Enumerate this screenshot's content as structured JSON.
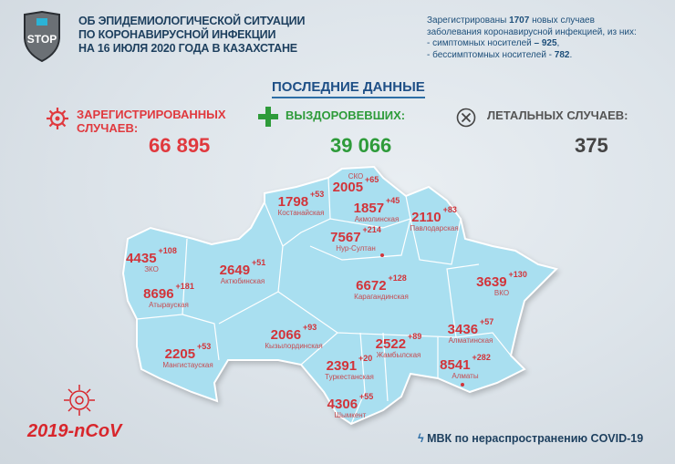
{
  "header": {
    "title_lines": [
      "ОБ ЭПИДЕМИОЛОГИЧЕСКОЙ СИТУАЦИИ",
      "ПО КОРОНАВИРУСНОЙ ИНФЕКЦИИ",
      "НА 16 ИЮЛЯ 2020 ГОДА В КАЗАХСТАНЕ"
    ],
    "logo_text": "STOP"
  },
  "info": {
    "l1a": "Зарегистрированы ",
    "l1b": "1707",
    "l1c": " новых случаев",
    "l2": "заболевания коронавирусной инфекцией, из них:",
    "l3a": "- симптомных носителей ",
    "l3b": "– 925",
    "l3c": ",",
    "l4a": "- бессимптомных носителей - ",
    "l4b": "782",
    "l4c": "."
  },
  "latest_title": "ПОСЛЕДНИЕ ДАННЫЕ",
  "stats": {
    "registered": {
      "label1": "ЗАРЕГИСТРИРОВАННЫХ",
      "label2": "СЛУЧАЕВ:",
      "value": "66 895",
      "color": "#e0393e",
      "icon": "virus-icon"
    },
    "recovered": {
      "label": "ВЫЗДОРОВЕВШИХ:",
      "value": "39 066",
      "color": "#2e9b3a",
      "icon": "plus-icon"
    },
    "deaths": {
      "label": "ЛЕТАЛЬНЫХ СЛУЧАЕВ:",
      "value": "375",
      "color": "#444444",
      "icon": "circle-x-icon"
    }
  },
  "regions": [
    {
      "name": "СКО",
      "total": "2005",
      "delta": "+65"
    },
    {
      "name": "Костанайская",
      "total": "1798",
      "delta": "+53"
    },
    {
      "name": "Акмолинская",
      "total": "1857",
      "delta": "+45"
    },
    {
      "name": "Павлодарская",
      "total": "2110",
      "delta": "+83"
    },
    {
      "name": "Нур-Султан",
      "total": "7567",
      "delta": "+214"
    },
    {
      "name": "ЗКО",
      "total": "4435",
      "delta": "+108"
    },
    {
      "name": "Актюбинская",
      "total": "2649",
      "delta": "+51"
    },
    {
      "name": "Атырауская",
      "total": "8696",
      "delta": "+181"
    },
    {
      "name": "Карагандинская",
      "total": "6672",
      "delta": "+128"
    },
    {
      "name": "ВКО",
      "total": "3639",
      "delta": "+130"
    },
    {
      "name": "Кызылординская",
      "total": "2066",
      "delta": "+93"
    },
    {
      "name": "Мангистауская",
      "total": "2205",
      "delta": "+53"
    },
    {
      "name": "Жамбылская",
      "total": "2522",
      "delta": "+89"
    },
    {
      "name": "Туркестанская",
      "total": "2391",
      "delta": "+20"
    },
    {
      "name": "Алматинская",
      "total": "3436",
      "delta": "+57"
    },
    {
      "name": "Алматы",
      "total": "8541",
      "delta": "+282"
    },
    {
      "name": "Шымкент",
      "total": "4306",
      "delta": "+55"
    }
  ],
  "footer": {
    "ncov": "2019-nCoV",
    "mvk": "МВК по нераспространению COVID-19"
  },
  "colors": {
    "map_fill": "#a9dff0",
    "accent_red": "#d8262c"
  }
}
